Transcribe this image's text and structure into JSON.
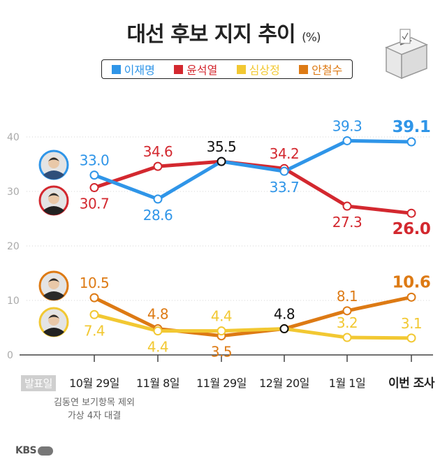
{
  "title": "대선 후보 지지 추이",
  "title_unit": "(%)",
  "legend": [
    {
      "label": "이재명",
      "color": "#2f95e8"
    },
    {
      "label": "윤석열",
      "color": "#d3282f"
    },
    {
      "label": "심상정",
      "color": "#f2c832"
    },
    {
      "label": "안철수",
      "color": "#dd7a14"
    }
  ],
  "pub_label": "발표일",
  "note_lines": [
    "김동연 보기항목 제외",
    "가상 4자 대결"
  ],
  "logo_text": "KBS",
  "chart_data": {
    "type": "line",
    "categories": [
      "10월 29일",
      "11월 8일",
      "11월 29일",
      "12월 20일",
      "1월 1일",
      "이번 조사"
    ],
    "ylim": [
      0,
      40
    ],
    "yticks": [
      0,
      10,
      20,
      30,
      40
    ],
    "series": [
      {
        "name": "이재명",
        "color": "#2f95e8",
        "values": [
          33.0,
          28.6,
          35.5,
          33.7,
          39.3,
          39.1
        ]
      },
      {
        "name": "윤석열",
        "color": "#d3282f",
        "values": [
          30.7,
          34.6,
          35.5,
          34.2,
          27.3,
          26.0
        ]
      },
      {
        "name": "심상정",
        "color": "#f2c832",
        "values": [
          7.4,
          4.4,
          4.4,
          4.8,
          3.2,
          3.1
        ]
      },
      {
        "name": "안철수",
        "color": "#dd7a14",
        "values": [
          10.5,
          4.8,
          3.5,
          4.8,
          8.1,
          10.6
        ]
      }
    ],
    "labels": [
      {
        "series": 0,
        "index": 0,
        "text": "33.0",
        "pos": "above"
      },
      {
        "series": 0,
        "index": 1,
        "text": "28.6",
        "pos": "below"
      },
      {
        "series": 0,
        "index": 3,
        "text": "33.7",
        "pos": "below"
      },
      {
        "series": 0,
        "index": 4,
        "text": "39.3",
        "pos": "above"
      },
      {
        "series": 0,
        "index": 5,
        "text": "39.1",
        "pos": "above",
        "bold": true
      },
      {
        "series": 1,
        "index": 0,
        "text": "30.7",
        "pos": "below"
      },
      {
        "series": 1,
        "index": 1,
        "text": "34.6",
        "pos": "above"
      },
      {
        "series": 1,
        "index": 2,
        "text": "35.5",
        "pos": "above",
        "black": true
      },
      {
        "series": 1,
        "index": 3,
        "text": "34.2",
        "pos": "above"
      },
      {
        "series": 1,
        "index": 4,
        "text": "27.3",
        "pos": "below"
      },
      {
        "series": 1,
        "index": 5,
        "text": "26.0",
        "pos": "below",
        "bold": true
      },
      {
        "series": 3,
        "index": 0,
        "text": "10.5",
        "pos": "above"
      },
      {
        "series": 3,
        "index": 1,
        "text": "4.8",
        "pos": "above"
      },
      {
        "series": 2,
        "index": 2,
        "text": "4.4",
        "pos": "above"
      },
      {
        "series": 3,
        "index": 2,
        "text": "3.5",
        "pos": "below"
      },
      {
        "series": 3,
        "index": 3,
        "text": "4.8",
        "pos": "above",
        "black": true
      },
      {
        "series": 3,
        "index": 4,
        "text": "8.1",
        "pos": "above"
      },
      {
        "series": 3,
        "index": 5,
        "text": "10.6",
        "pos": "above",
        "bold": true
      },
      {
        "series": 2,
        "index": 0,
        "text": "7.4",
        "pos": "below"
      },
      {
        "series": 2,
        "index": 1,
        "text": "4.4",
        "pos": "below"
      },
      {
        "series": 2,
        "index": 4,
        "text": "3.2",
        "pos": "above"
      },
      {
        "series": 2,
        "index": 5,
        "text": "3.1",
        "pos": "above"
      }
    ]
  }
}
